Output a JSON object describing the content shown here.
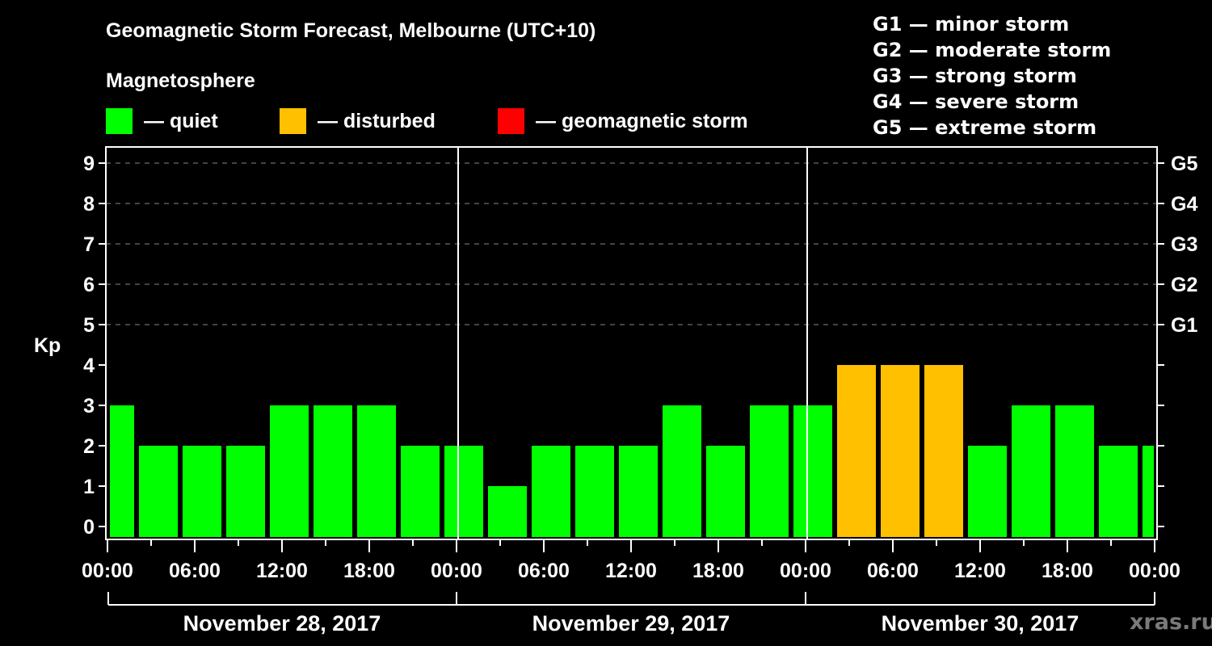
{
  "header": {
    "title": "Geomagnetic Storm Forecast, Melbourne (UTC+10)",
    "subtitle": "Magnetosphere"
  },
  "legend": {
    "items": [
      {
        "label": "— quiet",
        "color": "#00ff00"
      },
      {
        "label": "— disturbed",
        "color": "#ffc000"
      },
      {
        "label": "— geomagnetic storm",
        "color": "#ff0000"
      }
    ]
  },
  "storm_scale": [
    "G1 — minor storm",
    "G2 — moderate storm",
    "G3 — strong storm",
    "G4 — severe storm",
    "G5 — extreme storm"
  ],
  "watermark": "xras.ru",
  "chart_data": {
    "type": "bar",
    "title": "Geomagnetic Storm Forecast, Melbourne (UTC+10)",
    "ylabel": "Kp",
    "xlabel": "",
    "ylim": [
      0,
      9
    ],
    "yticks": [
      0,
      1,
      2,
      3,
      4,
      5,
      6,
      7,
      8,
      9
    ],
    "right_axis": [
      {
        "kp": 5,
        "label": "G1"
      },
      {
        "kp": 6,
        "label": "G2"
      },
      {
        "kp": 7,
        "label": "G3"
      },
      {
        "kp": 8,
        "label": "G4"
      },
      {
        "kp": 9,
        "label": "G5"
      }
    ],
    "grid": "dashed horizontal at Kp 5–9",
    "xtick_labels": [
      "00:00",
      "06:00",
      "12:00",
      "18:00",
      "00:00",
      "06:00",
      "12:00",
      "18:00",
      "00:00",
      "06:00",
      "12:00",
      "18:00",
      "00:00"
    ],
    "days": [
      "November 28, 2017",
      "November 29, 2017",
      "November 30, 2017"
    ],
    "interval_hours": 3,
    "categories": [
      "Nov 27 22:00–01:00",
      "01:00–04:00",
      "04:00–07:00",
      "07:00–10:00",
      "10:00–13:00",
      "13:00–16:00",
      "16:00–19:00",
      "19:00–22:00",
      "22:00–01:00",
      "01:00–04:00",
      "04:00–07:00",
      "07:00–10:00",
      "10:00–13:00",
      "13:00–16:00",
      "16:00–19:00",
      "19:00–22:00",
      "22:00–01:00",
      "01:00–04:00",
      "04:00–07:00",
      "07:00–10:00",
      "10:00–13:00",
      "13:00–16:00",
      "16:00–19:00",
      "19:00–22:00",
      "22:00–01:00"
    ],
    "values": [
      3,
      2,
      2,
      2,
      3,
      3,
      3,
      2,
      2,
      1,
      2,
      2,
      2,
      3,
      2,
      3,
      3,
      4,
      4,
      4,
      2,
      3,
      3,
      2,
      2
    ],
    "colors": {
      "quiet": "#00ff00",
      "disturbed": "#ffc000",
      "storm": "#ff0000"
    },
    "thresholds": {
      "disturbed_min": 4,
      "storm_min": 5
    }
  }
}
